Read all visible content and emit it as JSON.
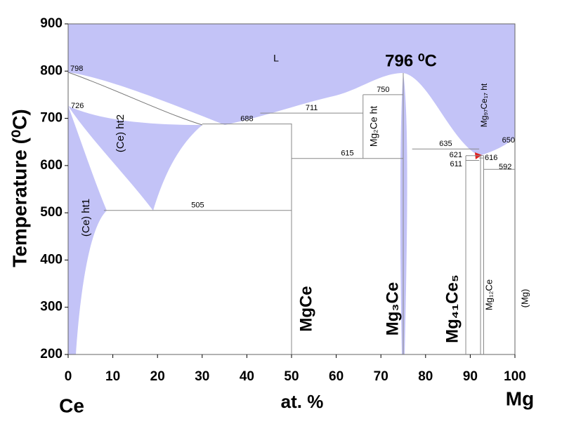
{
  "chart_data": {
    "type": "phase-diagram",
    "xlabel": "at. %",
    "ylabel": "Temperature (⁰C)",
    "left_element": "Ce",
    "right_element": "Mg",
    "peak": {
      "value": 796,
      "label": "796 ⁰C"
    },
    "xlim": [
      0,
      100
    ],
    "ylim": [
      200,
      900
    ],
    "xticks": [
      0,
      10,
      20,
      30,
      40,
      50,
      60,
      70,
      80,
      90,
      100
    ],
    "yticks": [
      200,
      300,
      400,
      500,
      600,
      700,
      800,
      900
    ],
    "fill_color": "#c3c3f7",
    "invariants": [
      {
        "temperature": 798,
        "x": [
          0,
          0
        ]
      },
      {
        "temperature": 726,
        "x": [
          0,
          0
        ]
      },
      {
        "temperature": 750,
        "x": [
          66,
          75
        ]
      },
      {
        "temperature": 711,
        "x": [
          43,
          66
        ]
      },
      {
        "temperature": 688,
        "x": [
          30,
          50
        ]
      },
      {
        "temperature": 615,
        "x": [
          50,
          75
        ]
      },
      {
        "temperature": 505,
        "x": [
          8,
          50
        ]
      },
      {
        "temperature": 635,
        "x": [
          77,
          92
        ]
      },
      {
        "temperature": 621,
        "x": [
          89,
          93
        ]
      },
      {
        "temperature": 611,
        "x": [
          89,
          92
        ]
      },
      {
        "temperature": 616,
        "x": [
          92,
          93
        ]
      },
      {
        "temperature": 592,
        "x": [
          93,
          100
        ]
      },
      {
        "temperature": 650,
        "x": [
          100,
          100
        ]
      }
    ],
    "compounds": [
      {
        "name": "MgCe",
        "x": 50
      },
      {
        "name": "Mg₃Ce",
        "x": 75
      },
      {
        "name": "Mg₄₁Ce₅",
        "x": 89
      },
      {
        "name": "Mg₁₂Ce",
        "x": 92.3
      }
    ],
    "phases": [
      "L",
      "(Ce) ht1",
      "(Ce) ht2",
      "Mg₂Ce ht",
      "Mg₉₇Ce₁₇ ht",
      "(Mg)"
    ]
  }
}
